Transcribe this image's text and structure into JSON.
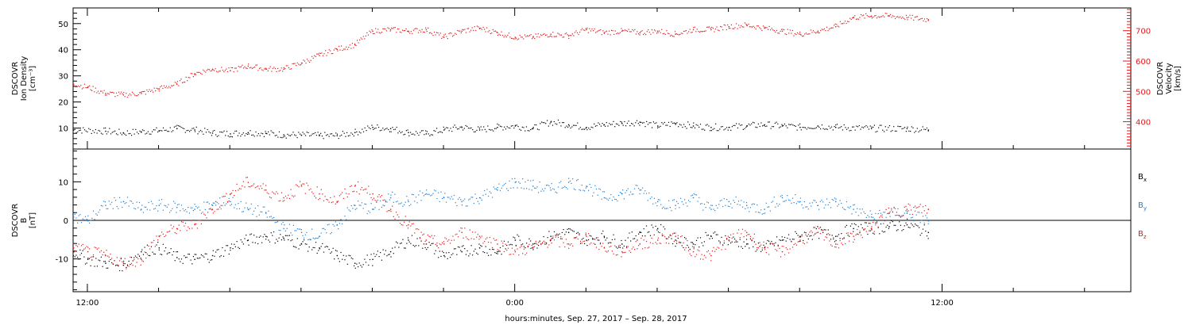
{
  "xaxis": {
    "label": "hours:minutes, Sep. 27, 2017 – Sep. 28, 2017",
    "range_hours": [
      11.6,
      41.3
    ],
    "ticks": [
      {
        "hour": 12,
        "label": "12:00"
      },
      {
        "hour": 24,
        "label": "0:00"
      },
      {
        "hour": 36,
        "label": "12:00"
      }
    ]
  },
  "colors": {
    "black": "#000000",
    "red": "#e31a1c",
    "blue": "#1f7fd4"
  },
  "chart_data": [
    {
      "type": "scatter",
      "ylabel": [
        "DSCOVR",
        "Ion Density",
        "[cm⁻³]"
      ],
      "ylabel_right": [
        "DSCOVR",
        "Velocity",
        "[km/s]"
      ],
      "ylim": [
        2,
        56
      ],
      "ylim_right": [
        310,
        775
      ],
      "yticks": [
        "10",
        "20",
        "30",
        "40",
        "50"
      ],
      "yticks_right": [
        "400",
        "500",
        "600",
        "700"
      ],
      "series": [
        {
          "axis": "left",
          "color": "black",
          "points": [
            [
              11.6,
              9.5
            ],
            [
              12.5,
              9.0
            ],
            [
              13,
              8.3
            ],
            [
              13.5,
              8.8
            ],
            [
              14,
              9.2
            ],
            [
              14.5,
              10.0
            ],
            [
              15,
              9.5
            ],
            [
              15.5,
              8.3
            ],
            [
              16,
              8.0
            ],
            [
              16.5,
              8.5
            ],
            [
              17,
              8.2
            ],
            [
              17.5,
              7.6
            ],
            [
              18,
              7.5
            ],
            [
              18.5,
              7.3
            ],
            [
              19,
              7.3
            ],
            [
              19.5,
              8.5
            ],
            [
              20,
              10.5
            ],
            [
              20.5,
              10.0
            ],
            [
              21,
              8.5
            ],
            [
              21.5,
              8.0
            ],
            [
              22,
              9.5
            ],
            [
              22.5,
              10.5
            ],
            [
              23,
              9.5
            ],
            [
              23.5,
              10.5
            ],
            [
              24,
              11.0
            ],
            [
              24.5,
              10.0
            ],
            [
              25,
              12.5
            ],
            [
              25.5,
              11.5
            ],
            [
              26,
              10.5
            ],
            [
              26.5,
              11.5
            ],
            [
              27,
              12.0
            ],
            [
              27.5,
              12.5
            ],
            [
              28,
              11.0
            ],
            [
              28.5,
              12.0
            ],
            [
              29,
              11.0
            ],
            [
              29.5,
              10.5
            ],
            [
              30,
              10.5
            ],
            [
              30.5,
              11.0
            ],
            [
              31,
              11.5
            ],
            [
              31.5,
              11.0
            ],
            [
              32,
              10.5
            ],
            [
              32.5,
              11.0
            ],
            [
              33,
              10.5
            ],
            [
              34,
              10.0
            ],
            [
              35,
              10.0
            ],
            [
              35.6,
              9.5
            ]
          ]
        },
        {
          "axis": "right",
          "color": "red",
          "points": [
            [
              11.6,
              525
            ],
            [
              12,
              515
            ],
            [
              12.5,
              495
            ],
            [
              13,
              490
            ],
            [
              13.5,
              495
            ],
            [
              14,
              510
            ],
            [
              14.5,
              525
            ],
            [
              15,
              560
            ],
            [
              15.5,
              575
            ],
            [
              16,
              570
            ],
            [
              16.5,
              585
            ],
            [
              17,
              575
            ],
            [
              17.5,
              575
            ],
            [
              18,
              595
            ],
            [
              18.5,
              620
            ],
            [
              19,
              640
            ],
            [
              19.5,
              655
            ],
            [
              20,
              700
            ],
            [
              20.5,
              705
            ],
            [
              21,
              700
            ],
            [
              21.5,
              705
            ],
            [
              22,
              680
            ],
            [
              22.5,
              700
            ],
            [
              23,
              710
            ],
            [
              23.5,
              695
            ],
            [
              24,
              680
            ],
            [
              24.5,
              680
            ],
            [
              25,
              690
            ],
            [
              25.5,
              685
            ],
            [
              26,
              705
            ],
            [
              26.5,
              695
            ],
            [
              27,
              700
            ],
            [
              27.5,
              695
            ],
            [
              28,
              700
            ],
            [
              28.5,
              690
            ],
            [
              29,
              705
            ],
            [
              29.5,
              705
            ],
            [
              30,
              715
            ],
            [
              30.5,
              720
            ],
            [
              31,
              710
            ],
            [
              31.5,
              700
            ],
            [
              32,
              690
            ],
            [
              32.5,
              700
            ],
            [
              33,
              715
            ],
            [
              33.5,
              745
            ],
            [
              34,
              750
            ],
            [
              34.5,
              750
            ],
            [
              35,
              745
            ],
            [
              35.6,
              738
            ]
          ]
        }
      ]
    },
    {
      "type": "scatter",
      "ylabel": [
        "DSCOVR",
        "B",
        "[nT]"
      ],
      "ylim": [
        -18.5,
        18.5
      ],
      "yticks": [
        "-10",
        "0",
        "10"
      ],
      "zero_line": true,
      "legend": [
        {
          "label": "B",
          "sub": "x",
          "color": "black"
        },
        {
          "label": "B",
          "sub": "y",
          "color": "blue"
        },
        {
          "label": "B",
          "sub": "z",
          "color": "red"
        }
      ],
      "series": [
        {
          "name": "Bx",
          "color": "black",
          "points": [
            [
              11.6,
              -8
            ],
            [
              12,
              -10
            ],
            [
              12.5,
              -11
            ],
            [
              13,
              -11.5
            ],
            [
              13.5,
              -8
            ],
            [
              14,
              -7
            ],
            [
              14.5,
              -9.5
            ],
            [
              15,
              -10
            ],
            [
              15.5,
              -9
            ],
            [
              16,
              -7
            ],
            [
              16.5,
              -5
            ],
            [
              17,
              -4
            ],
            [
              17.5,
              -4.5
            ],
            [
              18,
              -6
            ],
            [
              18.5,
              -7
            ],
            [
              19,
              -9
            ],
            [
              19.5,
              -11
            ],
            [
              20,
              -10
            ],
            [
              20.5,
              -8
            ],
            [
              21,
              -5
            ],
            [
              21.5,
              -6
            ],
            [
              22,
              -9
            ],
            [
              22.5,
              -8
            ],
            [
              23,
              -7
            ],
            [
              23.5,
              -8
            ],
            [
              24,
              -5
            ],
            [
              24.5,
              -6
            ],
            [
              25,
              -4
            ],
            [
              25.5,
              -3
            ],
            [
              26,
              -5
            ],
            [
              26.5,
              -4
            ],
            [
              27,
              -6
            ],
            [
              27.5,
              -3
            ],
            [
              28,
              -2
            ],
            [
              28.5,
              -5
            ],
            [
              29,
              -6
            ],
            [
              29.5,
              -4
            ],
            [
              30,
              -5
            ],
            [
              30.5,
              -6
            ],
            [
              31,
              -7
            ],
            [
              31.5,
              -5
            ],
            [
              32,
              -4
            ],
            [
              32.5,
              -3
            ],
            [
              33,
              -4
            ],
            [
              33.5,
              -2
            ],
            [
              34,
              -2
            ],
            [
              34.5,
              -1.5
            ],
            [
              35,
              -1
            ],
            [
              35.6,
              -3
            ]
          ]
        },
        {
          "name": "By",
          "color": "blue",
          "points": [
            [
              11.6,
              1
            ],
            [
              12,
              0
            ],
            [
              12.5,
              4
            ],
            [
              13,
              5
            ],
            [
              13.5,
              3
            ],
            [
              14,
              4
            ],
            [
              14.5,
              3.5
            ],
            [
              15,
              3
            ],
            [
              15.5,
              4
            ],
            [
              16,
              5
            ],
            [
              16.5,
              3
            ],
            [
              17,
              2
            ],
            [
              17.5,
              -2
            ],
            [
              18,
              -3
            ],
            [
              18.5,
              -4
            ],
            [
              19,
              -1
            ],
            [
              19.5,
              4
            ],
            [
              20,
              3
            ],
            [
              20.5,
              6
            ],
            [
              21,
              5
            ],
            [
              21.5,
              7
            ],
            [
              22,
              6
            ],
            [
              22.5,
              5
            ],
            [
              23,
              6
            ],
            [
              23.5,
              8
            ],
            [
              24,
              10
            ],
            [
              24.5,
              9
            ],
            [
              25,
              8
            ],
            [
              25.5,
              10
            ],
            [
              26,
              9
            ],
            [
              26.5,
              6
            ],
            [
              27,
              7
            ],
            [
              27.5,
              8
            ],
            [
              28,
              5
            ],
            [
              28.5,
              4
            ],
            [
              29,
              6
            ],
            [
              29.5,
              3
            ],
            [
              30,
              5
            ],
            [
              30.5,
              4
            ],
            [
              31,
              3
            ],
            [
              31.5,
              6
            ],
            [
              32,
              5
            ],
            [
              32.5,
              4
            ],
            [
              33,
              5
            ],
            [
              33.5,
              3
            ],
            [
              34,
              1
            ],
            [
              34.5,
              2
            ],
            [
              35,
              2
            ],
            [
              35.6,
              0
            ]
          ]
        },
        {
          "name": "Bz",
          "color": "red",
          "points": [
            [
              11.6,
              -7
            ],
            [
              12,
              -8
            ],
            [
              12.5,
              -9
            ],
            [
              13,
              -11
            ],
            [
              13.5,
              -10
            ],
            [
              14,
              -4
            ],
            [
              14.5,
              -2
            ],
            [
              15,
              -1
            ],
            [
              15.5,
              3
            ],
            [
              16,
              7
            ],
            [
              16.5,
              10
            ],
            [
              17,
              8
            ],
            [
              17.5,
              6
            ],
            [
              18,
              9
            ],
            [
              18.5,
              7
            ],
            [
              19,
              5
            ],
            [
              19.5,
              9
            ],
            [
              20,
              7
            ],
            [
              20.5,
              3
            ],
            [
              21,
              -1
            ],
            [
              21.5,
              -5
            ],
            [
              22,
              -6
            ],
            [
              22.5,
              -3
            ],
            [
              23,
              -4
            ],
            [
              23.5,
              -6
            ],
            [
              24,
              -8
            ],
            [
              24.5,
              -7
            ],
            [
              25,
              -5
            ],
            [
              25.5,
              -6
            ],
            [
              26,
              -4
            ],
            [
              26.5,
              -7
            ],
            [
              27,
              -8
            ],
            [
              27.5,
              -6
            ],
            [
              28,
              -5
            ],
            [
              28.5,
              -4
            ],
            [
              29,
              -8
            ],
            [
              29.5,
              -9
            ],
            [
              30,
              -5
            ],
            [
              30.5,
              -3
            ],
            [
              31,
              -7
            ],
            [
              31.5,
              -8
            ],
            [
              32,
              -5
            ],
            [
              32.5,
              -3
            ],
            [
              33,
              -6
            ],
            [
              33.5,
              -4
            ],
            [
              34,
              -2
            ],
            [
              34.5,
              2
            ],
            [
              35,
              3
            ],
            [
              35.6,
              3
            ]
          ]
        }
      ]
    }
  ]
}
